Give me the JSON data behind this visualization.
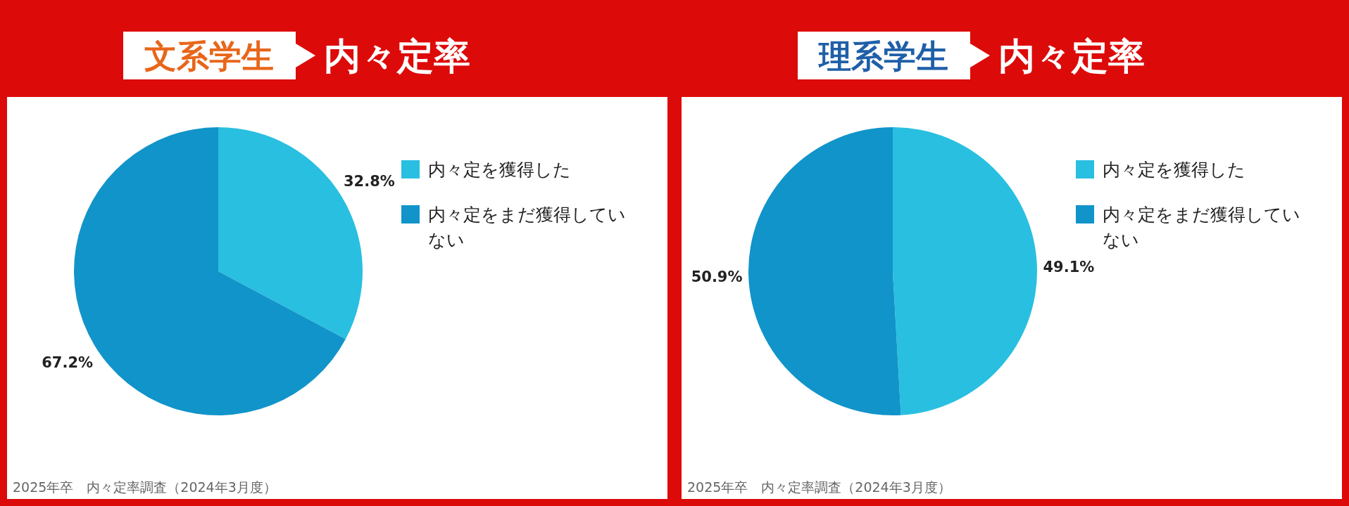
{
  "chart_data": [
    {
      "type": "pie",
      "title": "文系学生",
      "subtitle": "内々定率",
      "categories": [
        "内々定を獲得した",
        "内々定をまだ獲得していない"
      ],
      "values": [
        32.8,
        67.2
      ],
      "colors": [
        "#29bfe0",
        "#1194c9"
      ],
      "value_labels": [
        "32.8%",
        "67.2%"
      ],
      "legend": "top right",
      "annotations": [
        "2025年卒　内々定率調査（2024年3月度）"
      ]
    },
    {
      "type": "pie",
      "title": "理系学生",
      "subtitle": "内々定率",
      "categories": [
        "内々定を獲得した",
        "内々定をまだ獲得していない"
      ],
      "values": [
        49.1,
        50.9
      ],
      "colors": [
        "#29bfe0",
        "#1194c9"
      ],
      "value_labels": [
        "49.1%",
        "50.9%"
      ],
      "legend": "top right",
      "annotations": [
        "2025年卒　内々定率調査（2024年3月度）"
      ]
    }
  ]
}
